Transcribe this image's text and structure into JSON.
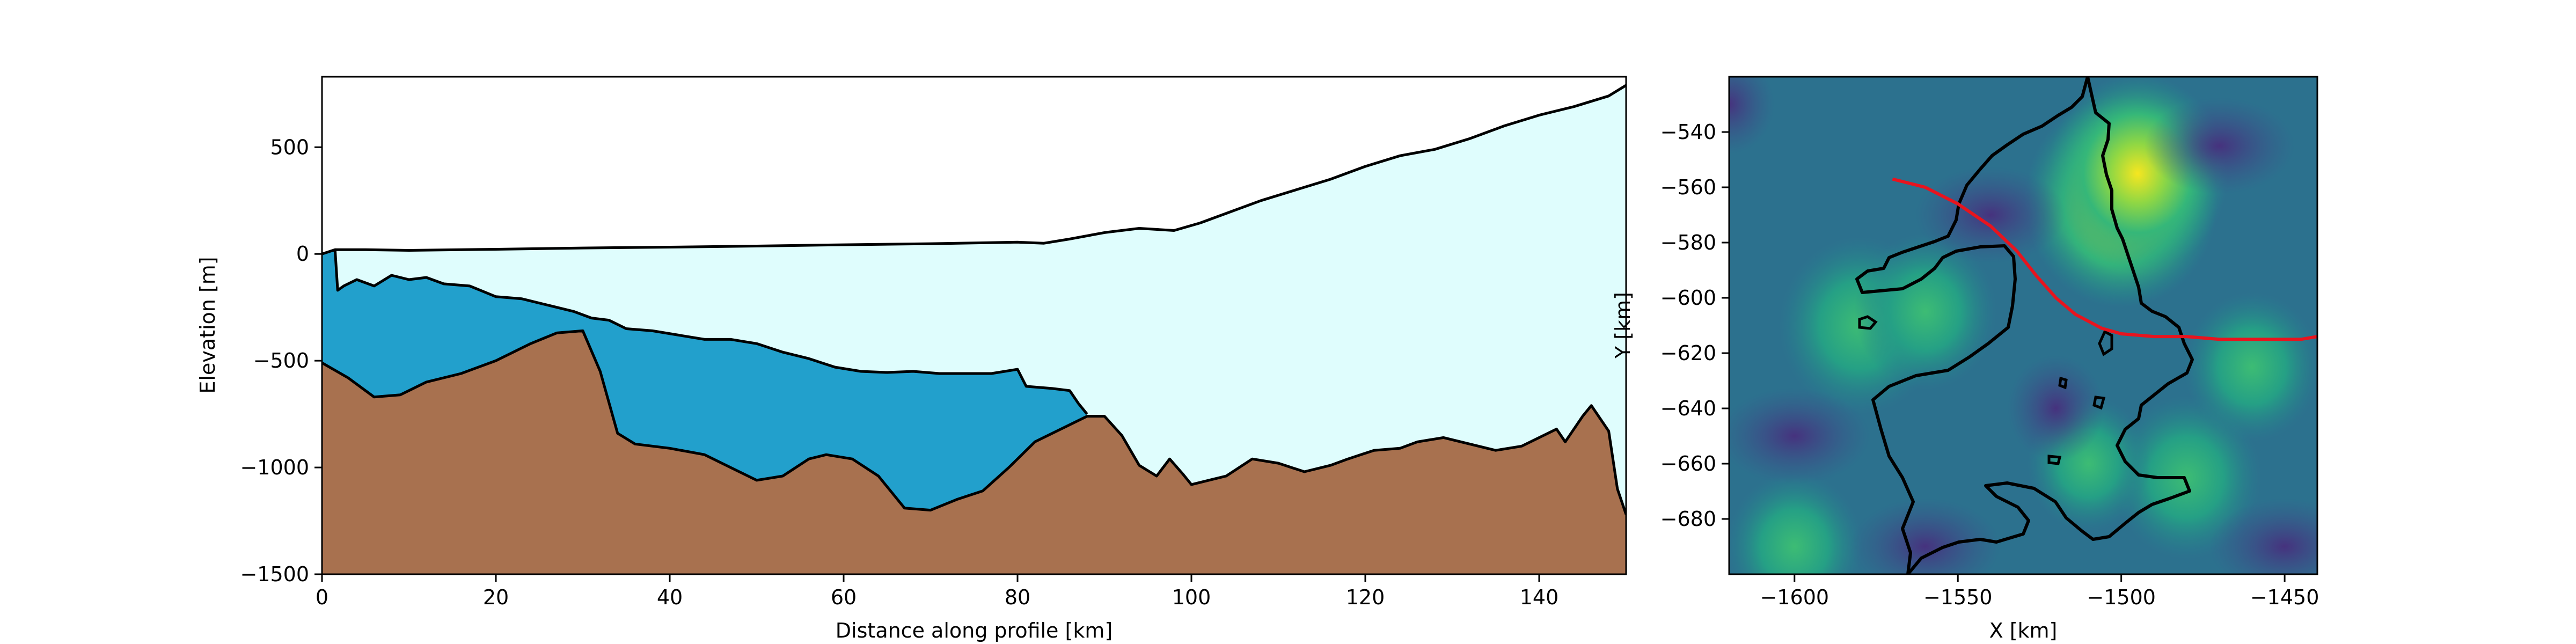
{
  "chart_data": [
    {
      "type": "area",
      "xlabel": "Distance along profile [km]",
      "ylabel": "Elevation [m]",
      "xlim": [
        0,
        150
      ],
      "ylim": [
        -1500,
        830
      ],
      "xticks": [
        "0",
        "20",
        "40",
        "60",
        "80",
        "100",
        "120",
        "140"
      ],
      "yticks": [
        "−1500",
        "−1000",
        "−500",
        "0",
        "500"
      ],
      "grid": false,
      "colors": {
        "ice": "#dffdfd",
        "water": "#22a0cc",
        "bed": "#a8714f",
        "outline": "#000000"
      },
      "series": [
        {
          "key": "surface",
          "points": [
            [
              1.5,
              20
            ],
            [
              5,
              20
            ],
            [
              10,
              17
            ],
            [
              20,
              22
            ],
            [
              30,
              28
            ],
            [
              40,
              32
            ],
            [
              50,
              37
            ],
            [
              60,
              43
            ],
            [
              70,
              48
            ],
            [
              80,
              55
            ],
            [
              83,
              50
            ],
            [
              86,
              70
            ],
            [
              90,
              100
            ],
            [
              94,
              120
            ],
            [
              98,
              110
            ],
            [
              101,
              145
            ],
            [
              104,
              190
            ],
            [
              108,
              250
            ],
            [
              112,
              300
            ],
            [
              116,
              350
            ],
            [
              120,
              410
            ],
            [
              124,
              460
            ],
            [
              128,
              490
            ],
            [
              132,
              540
            ],
            [
              136,
              600
            ],
            [
              140,
              650
            ],
            [
              144,
              690
            ],
            [
              148,
              740
            ],
            [
              150,
              790
            ]
          ]
        },
        {
          "key": "ice base",
          "points": [
            [
              1.5,
              20
            ],
            [
              1.8,
              -170
            ],
            [
              2.5,
              -150
            ],
            [
              4,
              -120
            ],
            [
              6,
              -150
            ],
            [
              8,
              -100
            ],
            [
              10,
              -120
            ],
            [
              12,
              -110
            ],
            [
              14,
              -140
            ],
            [
              17,
              -150
            ],
            [
              20,
              -200
            ],
            [
              23,
              -210
            ],
            [
              26,
              -240
            ],
            [
              29,
              -270
            ],
            [
              31,
              -300
            ],
            [
              33,
              -310
            ],
            [
              35,
              -350
            ],
            [
              38,
              -360
            ],
            [
              41,
              -380
            ],
            [
              44,
              -400
            ],
            [
              47,
              -400
            ],
            [
              50,
              -420
            ],
            [
              53,
              -460
            ],
            [
              56,
              -490
            ],
            [
              59,
              -530
            ],
            [
              62,
              -550
            ],
            [
              65,
              -555
            ],
            [
              68,
              -550
            ],
            [
              71,
              -560
            ],
            [
              74,
              -560
            ],
            [
              77,
              -560
            ],
            [
              80,
              -540
            ],
            [
              81,
              -620
            ],
            [
              84,
              -630
            ],
            [
              86,
              -640
            ],
            [
              87,
              -700
            ],
            [
              88,
              -750
            ]
          ]
        },
        {
          "key": "bed",
          "points": [
            [
              0,
              -510
            ],
            [
              3,
              -580
            ],
            [
              6,
              -670
            ],
            [
              9,
              -660
            ],
            [
              12,
              -600
            ],
            [
              16,
              -560
            ],
            [
              20,
              -500
            ],
            [
              24,
              -420
            ],
            [
              27,
              -370
            ],
            [
              30,
              -360
            ],
            [
              32,
              -550
            ],
            [
              34,
              -840
            ],
            [
              36,
              -890
            ],
            [
              40,
              -910
            ],
            [
              44,
              -940
            ],
            [
              47,
              -1000
            ],
            [
              50,
              -1060
            ],
            [
              53,
              -1040
            ],
            [
              56,
              -960
            ],
            [
              58,
              -940
            ],
            [
              61,
              -960
            ],
            [
              64,
              -1040
            ],
            [
              67,
              -1190
            ],
            [
              70,
              -1200
            ],
            [
              73,
              -1150
            ],
            [
              76,
              -1110
            ],
            [
              79,
              -1000
            ],
            [
              82,
              -880
            ],
            [
              86,
              -800
            ],
            [
              88,
              -760
            ],
            [
              90,
              -760
            ],
            [
              92,
              -850
            ],
            [
              94,
              -990
            ],
            [
              96,
              -1040
            ],
            [
              97.5,
              -960
            ],
            [
              99,
              -1030
            ],
            [
              100,
              -1080
            ],
            [
              102,
              -1060
            ],
            [
              104,
              -1040
            ],
            [
              107,
              -960
            ],
            [
              110,
              -980
            ],
            [
              113,
              -1020
            ],
            [
              116,
              -990
            ],
            [
              118,
              -960
            ],
            [
              121,
              -920
            ],
            [
              124,
              -910
            ],
            [
              126,
              -880
            ],
            [
              129,
              -860
            ],
            [
              132,
              -890
            ],
            [
              135,
              -920
            ],
            [
              138,
              -900
            ],
            [
              140,
              -860
            ],
            [
              142,
              -820
            ],
            [
              143,
              -880
            ],
            [
              145,
              -760
            ],
            [
              146,
              -710
            ],
            [
              148,
              -830
            ],
            [
              149,
              -1100
            ],
            [
              150,
              -1220
            ]
          ]
        }
      ]
    },
    {
      "type": "heatmap",
      "xlabel": "X [km]",
      "ylabel": "Y [km]",
      "xlim": [
        -1620,
        -1440
      ],
      "ylim": [
        -700,
        -520
      ],
      "xticks": [
        "−1600",
        "−1550",
        "−1500",
        "−1450"
      ],
      "yticks": [
        "−680",
        "−660",
        "−640",
        "−620",
        "−600",
        "−580",
        "−560",
        "−540"
      ],
      "colormap": "viridis",
      "colors": {
        "profile_line": "#e8141e",
        "outline": "#000000"
      },
      "profile_line": [
        [
          -1570,
          -557
        ],
        [
          -1560,
          -560
        ],
        [
          -1550,
          -566
        ],
        [
          -1540,
          -574
        ],
        [
          -1532,
          -583
        ],
        [
          -1526,
          -592
        ],
        [
          -1520,
          -600
        ],
        [
          -1514,
          -606
        ],
        [
          -1506,
          -611
        ],
        [
          -1500,
          -613
        ],
        [
          -1490,
          -614
        ],
        [
          -1480,
          -614
        ],
        [
          -1470,
          -615
        ],
        [
          -1455,
          -615
        ],
        [
          -1445,
          -615
        ],
        [
          -1440,
          -614
        ]
      ],
      "hotspots": [
        [
          -1500,
          -565,
          1.0
        ],
        [
          -1495,
          -555,
          0.9
        ],
        [
          -1580,
          -610,
          0.75
        ],
        [
          -1560,
          -605,
          0.6
        ],
        [
          -1600,
          -690,
          0.55
        ],
        [
          -1480,
          -665,
          0.65
        ],
        [
          -1460,
          -625,
          0.55
        ],
        [
          -1510,
          -660,
          0.45
        ],
        [
          -1620,
          -530,
          0.2
        ],
        [
          -1520,
          -640,
          0.25
        ]
      ]
    }
  ]
}
